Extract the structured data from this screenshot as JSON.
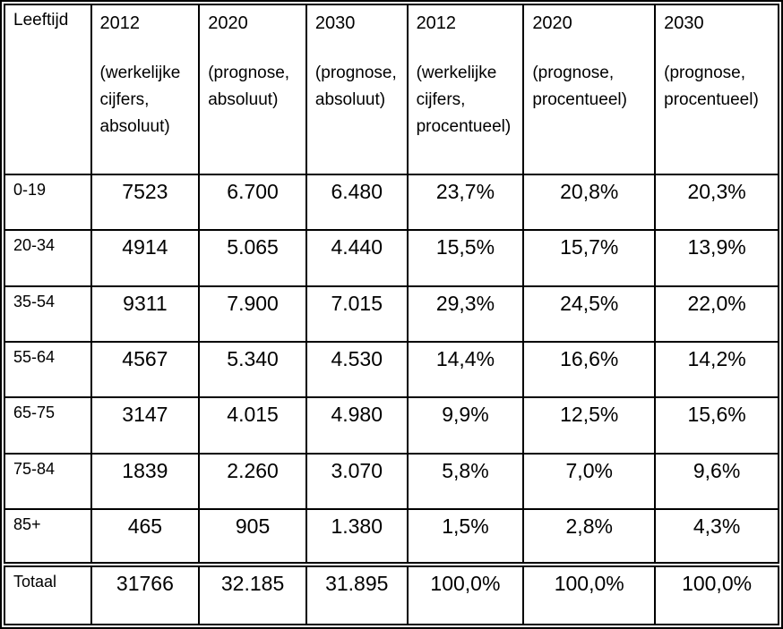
{
  "colors": {
    "background": "#ffffff",
    "border": "#000000",
    "text": "#000000"
  },
  "chart_data": {
    "type": "table",
    "corner_header": "Leeftijd",
    "column_headers": [
      {
        "year": "2012",
        "note": "(werkelijke cijfers, absoluut)"
      },
      {
        "year": "2020",
        "note": "(prognose, absoluut)"
      },
      {
        "year": "2030",
        "note": "(prognose, absoluut)"
      },
      {
        "year": "2012",
        "note": "(werkelijke cijfers, procentueel)"
      },
      {
        "year": "2020",
        "note": "(prognose, procentueel)"
      },
      {
        "year": "2030",
        "note": "(prognose, procentueel)"
      }
    ],
    "row_labels": [
      "0-19",
      "20-34",
      "35-54",
      "55-64",
      "65-75",
      "75-84",
      "85+",
      "Totaal"
    ],
    "rows": [
      [
        "7523",
        "6.700",
        "6.480",
        "23,7%",
        "20,8%",
        "20,3%"
      ],
      [
        "4914",
        "5.065",
        "4.440",
        "15,5%",
        "15,7%",
        "13,9%"
      ],
      [
        "9311",
        "7.900",
        "7.015",
        "29,3%",
        "24,5%",
        "22,0%"
      ],
      [
        "4567",
        "5.340",
        "4.530",
        "14,4%",
        "16,6%",
        "14,2%"
      ],
      [
        "3147",
        "4.015",
        "4.980",
        "9,9%",
        "12,5%",
        "15,6%"
      ],
      [
        "1839",
        "2.260",
        "3.070",
        "5,8%",
        "7,0%",
        "9,6%"
      ],
      [
        "465",
        "905",
        "1.380",
        "1,5%",
        "2,8%",
        "4,3%"
      ],
      [
        "31766",
        "32.185",
        "31.895",
        "100,0%",
        "100,0%",
        "100,0%"
      ]
    ]
  }
}
